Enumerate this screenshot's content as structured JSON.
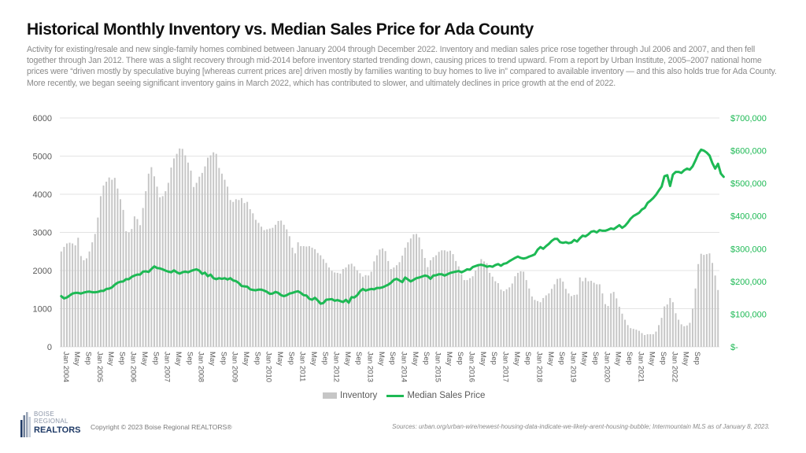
{
  "header": {
    "title": "Historical Monthly Inventory vs. Median Sales Price for Ada County",
    "description": "Activity for existing/resale and new single-family homes combined between January 2004 through December 2022. Inventory and median sales price rose together through Jul 2006 and 2007, and then fell together through Jan 2012. There was a slight recovery through mid-2014 before inventory started trending down, causing prices to trend upward. From a report by Urban Institute, 2005–2007 national home prices were “driven mostly by speculative buying [whereas current prices are] driven mostly by families wanting to buy homes to live in” compared to available inventory — and this also holds true for Ada County. More recently, we began seeing significant inventory gains in March 2022, which has contributed to slower, and ultimately declines in price growth at the end of 2022."
  },
  "footer": {
    "logo_line1": "BOISE",
    "logo_line2": "REGIONAL",
    "logo_line3": "REALTORS",
    "copyright": "Copyright © 2023 Boise Regional REALTORS®",
    "sources": "Sources: urban.org/urban-wire/newest-housing-data-indicate-we-likely-arent-housing-bubble; Intermountain MLS as of January 8, 2023."
  },
  "colors": {
    "bar": "#c6c6c6",
    "line": "#1db954",
    "grid": "#e3e3e3"
  },
  "chart_data": {
    "type": "bar+line",
    "title": "Historical Monthly Inventory vs. Median Sales Price for Ada County",
    "start": "Jan 2004",
    "end": "Dec 2022",
    "frequency": "monthly",
    "y_left": {
      "label": "",
      "ylim": [
        0,
        6000
      ],
      "ticks": [
        "0",
        "1000",
        "2000",
        "3000",
        "4000",
        "5000",
        "6000"
      ]
    },
    "y_right": {
      "label": "",
      "ylim": [
        0,
        700000
      ],
      "ticks": [
        "$-",
        "$100,000",
        "$200,000",
        "$300,000",
        "$400,000",
        "$500,000",
        "$600,000",
        "$700,000"
      ]
    },
    "x_tick_labels_every_4_months": [
      "Jan 2004",
      "May",
      "Sep",
      "Jan 2005",
      "May",
      "Sep",
      "Jan 2006",
      "May",
      "Sep",
      "Jan 2007",
      "May",
      "Sep",
      "Jan 2008",
      "May",
      "Sep",
      "Jan 2009",
      "May",
      "Sep",
      "Jan 2010",
      "May",
      "Sep",
      "Jan 2011",
      "May",
      "Sep",
      "Jan 2012",
      "May",
      "Sep",
      "Jan 2013",
      "May",
      "Sep",
      "Jan 2014",
      "May",
      "Sep",
      "Jan 2015",
      "May",
      "Sep",
      "Jan 2016",
      "May",
      "Sep",
      "Jan 2017",
      "May",
      "Sep",
      "Jan 2018",
      "May",
      "Sep",
      "Jan 2019",
      "May",
      "Sep",
      "Jan 2020",
      "May",
      "Sep",
      "Jan 2021",
      "May",
      "Sep",
      "Jan 2022",
      "May",
      "Sep"
    ],
    "grid": true,
    "legend": "bottom-center",
    "series": [
      {
        "name": "Inventory",
        "type": "bar",
        "axis": "left",
        "values": [
          2500,
          2620,
          2710,
          2730,
          2710,
          2660,
          2860,
          2380,
          2270,
          2320,
          2500,
          2740,
          2960,
          3390,
          3950,
          4230,
          4330,
          4440,
          4380,
          4430,
          4150,
          3870,
          3590,
          3030,
          3000,
          3090,
          3420,
          3350,
          3190,
          3640,
          4080,
          4540,
          4710,
          4470,
          4200,
          3920,
          3950,
          4080,
          4300,
          4700,
          4940,
          5060,
          5200,
          5190,
          5020,
          4830,
          4620,
          4190,
          4300,
          4460,
          4560,
          4730,
          4960,
          5020,
          5100,
          5060,
          4690,
          4540,
          4380,
          4200,
          3850,
          3800,
          3870,
          3850,
          3900,
          3770,
          3800,
          3610,
          3500,
          3330,
          3250,
          3150,
          3060,
          3080,
          3100,
          3120,
          3200,
          3300,
          3310,
          3200,
          3080,
          2900,
          2600,
          2450,
          2740,
          2640,
          2640,
          2630,
          2640,
          2600,
          2560,
          2460,
          2400,
          2300,
          2200,
          2080,
          1990,
          1950,
          1940,
          1920,
          2040,
          2080,
          2160,
          2180,
          2110,
          2010,
          1930,
          1840,
          1880,
          1870,
          1970,
          2240,
          2400,
          2550,
          2580,
          2510,
          2250,
          2040,
          2080,
          2140,
          2220,
          2390,
          2600,
          2740,
          2840,
          2950,
          2960,
          2870,
          2560,
          2330,
          2090,
          2270,
          2350,
          2400,
          2490,
          2530,
          2530,
          2500,
          2520,
          2430,
          2250,
          2110,
          1900,
          1750,
          1750,
          1800,
          1850,
          2000,
          2170,
          2300,
          2240,
          2190,
          1940,
          1840,
          1720,
          1670,
          1500,
          1460,
          1510,
          1560,
          1660,
          1850,
          1940,
          1980,
          1970,
          1750,
          1530,
          1320,
          1230,
          1200,
          1170,
          1280,
          1350,
          1400,
          1520,
          1640,
          1780,
          1800,
          1710,
          1520,
          1400,
          1330,
          1360,
          1370,
          1820,
          1720,
          1810,
          1720,
          1730,
          1680,
          1640,
          1640,
          1400,
          1120,
          1070,
          1400,
          1440,
          1270,
          1050,
          870,
          710,
          570,
          490,
          470,
          450,
          420,
          360,
          310,
          330,
          330,
          330,
          400,
          570,
          760,
          1060,
          1110,
          1280,
          1170,
          880,
          710,
          590,
          540,
          560,
          630,
          1000,
          1530,
          2170,
          2440,
          2410,
          2430,
          2450,
          2200,
          1870,
          1490
        ]
      },
      {
        "name": "Median Sales Price",
        "type": "line",
        "axis": "right",
        "values": [
          155000,
          148000,
          151000,
          157000,
          163000,
          165000,
          165000,
          163000,
          166000,
          168000,
          169000,
          167000,
          167000,
          168000,
          171000,
          171000,
          177000,
          178000,
          182000,
          190000,
          196000,
          199000,
          200000,
          207000,
          207000,
          214000,
          218000,
          221000,
          221000,
          230000,
          231000,
          229000,
          238000,
          246000,
          241000,
          240000,
          237000,
          233000,
          230000,
          228000,
          234000,
          228000,
          224000,
          228000,
          230000,
          228000,
          232000,
          235000,
          237000,
          233000,
          223000,
          227000,
          216000,
          221000,
          210000,
          207000,
          210000,
          208000,
          210000,
          206000,
          210000,
          203000,
          201000,
          195000,
          186000,
          185000,
          184000,
          176000,
          174000,
          173000,
          175000,
          175000,
          172000,
          168000,
          162000,
          163000,
          168000,
          165000,
          158000,
          155000,
          158000,
          163000,
          165000,
          168000,
          170000,
          165000,
          158000,
          157000,
          147000,
          144000,
          150000,
          142000,
          132000,
          134000,
          144000,
          145000,
          146000,
          141000,
          143000,
          140000,
          137000,
          144000,
          135000,
          152000,
          151000,
          158000,
          170000,
          177000,
          172000,
          175000,
          177000,
          176000,
          180000,
          180000,
          182000,
          186000,
          190000,
          196000,
          205000,
          208000,
          203000,
          198000,
          212000,
          206000,
          200000,
          205000,
          210000,
          212000,
          215000,
          218000,
          216000,
          208000,
          218000,
          219000,
          222000,
          222000,
          218000,
          222000,
          226000,
          228000,
          230000,
          232000,
          228000,
          232000,
          237000,
          236000,
          244000,
          247000,
          250000,
          251000,
          249000,
          245000,
          247000,
          245000,
          250000,
          253000,
          248000,
          254000,
          256000,
          262000,
          267000,
          272000,
          276000,
          272000,
          270000,
          272000,
          276000,
          279000,
          283000,
          297000,
          305000,
          300000,
          308000,
          315000,
          324000,
          330000,
          330000,
          320000,
          318000,
          320000,
          317000,
          319000,
          327000,
          322000,
          332000,
          340000,
          338000,
          344000,
          352000,
          354000,
          350000,
          357000,
          355000,
          355000,
          358000,
          362000,
          360000,
          366000,
          372000,
          364000,
          370000,
          380000,
          392000,
          400000,
          405000,
          410000,
          420000,
          425000,
          440000,
          447000,
          455000,
          465000,
          478000,
          490000,
          522000,
          525000,
          492000,
          527000,
          535000,
          535000,
          532000,
          540000,
          545000,
          542000,
          552000,
          570000,
          590000,
          603000,
          600000,
          594000,
          585000,
          562000,
          545000,
          560000,
          530000,
          520000
        ]
      }
    ]
  }
}
